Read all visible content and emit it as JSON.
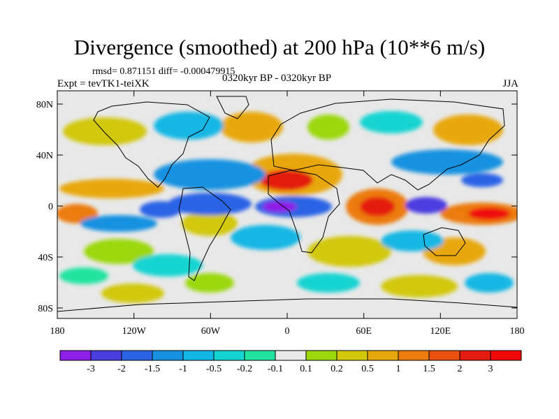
{
  "title": "Divergence (smoothed) at 200 hPa (10**6 m/s)",
  "stats": "rmsd= 0.871151 diff= -0.000479915",
  "experiment": "Expt = tevTK1-teiXK",
  "period": "0320kyr BP - 0320kyr BP",
  "season": "JJA",
  "map": {
    "lat_ticks": [
      "80N",
      "40N",
      "0",
      "40S",
      "80S"
    ],
    "lon_ticks": [
      "180",
      "120W",
      "60W",
      "0",
      "60E",
      "120E",
      "180"
    ],
    "ocean_color": "#e8e8e8",
    "coast_color": "#000000"
  },
  "colorbar": {
    "labels": [
      "-3",
      "-2",
      "-1.5",
      "-1",
      "-0.5",
      "-0.2",
      "-0.1",
      "0.1",
      "0.2",
      "0.5",
      "1",
      "1.5",
      "2",
      "3"
    ],
    "colors": [
      "#8f1ee6",
      "#4b3ee0",
      "#2a63e6",
      "#1792e0",
      "#12b7e4",
      "#14d4d2",
      "#22e4a0",
      "#e8e8e8",
      "#9bd80e",
      "#d2c80a",
      "#e8a80c",
      "#ec7c0c",
      "#ea5010",
      "#e41c10",
      "#f00808"
    ]
  }
}
